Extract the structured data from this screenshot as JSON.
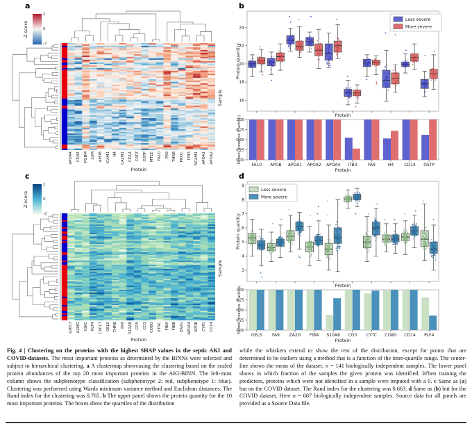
{
  "figure_labels": {
    "a": "a",
    "b": "b",
    "c": "c",
    "d": "d"
  },
  "colors": {
    "less_severe_aki": "#5E62CE",
    "more_severe_aki": "#DF6E6E",
    "less_pt_aki": "#3B40BC",
    "more_pt_aki": "#C94B4B",
    "less_severe_covid": "#C9E0C5",
    "more_severe_covid": "#4A91BB",
    "less_pt_covid": "#85B07F",
    "more_pt_covid": "#2E6F9E",
    "subphenotype_2_red": "#E8000B",
    "subphenotype_1_blue": "#0000CD",
    "box_edge": "#555555",
    "median": "#2A2A2A",
    "axis": "#999999",
    "dendro": "#7A7A7A"
  },
  "chart_data": {
    "panel_a": {
      "type": "heatmap",
      "title_letter": "a",
      "colorbar": {
        "title": "Z-score",
        "ticks": [
          "2",
          "0",
          "-2"
        ],
        "gradient": [
          "#B2182B",
          "#F7F4F2",
          "#2166AC"
        ]
      },
      "palette_low_to_high": [
        "#2166AC",
        "#4393C3",
        "#92C5DE",
        "#D1E5F0",
        "#F7F4F1",
        "#FDDBC7",
        "#F4A582",
        "#D6604D",
        "#B2182B"
      ],
      "columns": [
        "APOA4",
        "CD44",
        "PGBM",
        "LUM",
        "APOB",
        "ICAM1",
        "H4",
        "CALM1",
        "CD14",
        "CATZ",
        "OSTP",
        "MT1E",
        "FA10",
        "FA9",
        "THRB",
        "PROC",
        "ITB3",
        "NCAM1",
        "APOA1",
        "APOA2"
      ],
      "n_rows": 141,
      "display_rows": 77,
      "seed": 13,
      "bias_red": 0.5,
      "bias_blue": -0.55,
      "row_strip_segments": [
        [
          "r",
          0.02
        ],
        [
          "b",
          0.012
        ],
        [
          "r",
          0.1
        ],
        [
          "b",
          0.015
        ],
        [
          "r",
          0.03
        ],
        [
          "b",
          0.02
        ],
        [
          "r",
          0.02
        ],
        [
          "b",
          0.015
        ],
        [
          "r",
          0.27
        ],
        [
          "b",
          0.07
        ],
        [
          "r",
          0.03
        ],
        [
          "b",
          0.338
        ],
        [
          "r",
          0.04
        ],
        [
          "b",
          0.02
        ]
      ],
      "xlabel": "Protein",
      "right_label": "Sample"
    },
    "panel_c": {
      "type": "heatmap",
      "title_letter": "c",
      "colorbar": {
        "title": "Z-score",
        "ticks": [
          "2",
          "0",
          "-2"
        ],
        "gradient": [
          "#084081",
          "#4EB3D3",
          "#F7FCF0"
        ]
      },
      "palette_low_to_high": [
        "#F7FCF0",
        "#E0F3DB",
        "#CCEBC5",
        "#A8DDB5",
        "#7BCCC4",
        "#4EB3D3",
        "#2B8CBE",
        "#0868AC",
        "#084081"
      ],
      "columns": [
        "LV657",
        "A2MG",
        "IGKC",
        "PLF4",
        "CXCL7",
        "GELS",
        "THRB",
        "FA9",
        "S10A8",
        "CO9",
        "CO3",
        "CO8G",
        "VTNC",
        "FIBA",
        "FIBB",
        "ZA2G",
        "APOA4",
        "APOE",
        "CYTC",
        "CD14"
      ],
      "n_rows": 687,
      "display_rows": 77,
      "seed": 29,
      "bias_red": 0.38,
      "bias_blue": -0.34,
      "row_strip_segments": [
        [
          "b",
          0.06
        ],
        [
          "r",
          0.01
        ],
        [
          "b",
          0.05
        ],
        [
          "r",
          0.012
        ],
        [
          "b",
          0.03
        ],
        [
          "r",
          0.02
        ],
        [
          "b",
          0.01
        ],
        [
          "r",
          0.035
        ],
        [
          "b",
          0.01
        ],
        [
          "r",
          0.012
        ],
        [
          "b",
          0.085
        ],
        [
          "r",
          0.02
        ],
        [
          "b",
          0.05
        ],
        [
          "r",
          0.015
        ],
        [
          "b",
          0.02
        ],
        [
          "r",
          0.3
        ],
        [
          "b",
          0.01
        ],
        [
          "r",
          0.07
        ],
        [
          "b",
          0.015
        ],
        [
          "r",
          0.035
        ],
        [
          "b",
          0.03
        ],
        [
          "r",
          0.01
        ],
        [
          "b",
          0.015
        ],
        [
          "r",
          0.04
        ],
        [
          "b",
          0.036
        ]
      ],
      "xlabel": "Protein",
      "right_label": "Sample"
    },
    "panel_b": {
      "type": "box+bar",
      "title_letter": "b",
      "legend": [
        "Less severe",
        "More severe"
      ],
      "legend_pos": "right",
      "ylabel": "Protein quantity",
      "xlabel": "Protein",
      "ylim": [
        14.8,
        25.8
      ],
      "yticks": [
        16,
        18,
        20,
        22,
        24
      ],
      "proteins": [
        "FA10",
        "APOB",
        "APOA1",
        "APOA2",
        "APOA4",
        "ITB3",
        "FA9",
        "H4",
        "CD14",
        "OSTP"
      ],
      "box": {
        "less": [
          [
            18.6,
            19.6,
            20.0,
            20.3,
            21.0
          ],
          [
            18.8,
            19.8,
            20.2,
            20.6,
            21.3
          ],
          [
            21.4,
            22.2,
            22.6,
            23.1,
            23.9
          ],
          [
            21.3,
            22.0,
            22.45,
            22.9,
            23.5
          ],
          [
            19.6,
            20.4,
            21.1,
            22.2,
            23.4
          ],
          [
            15.5,
            16.4,
            16.8,
            17.2,
            18.2
          ],
          [
            18.6,
            19.7,
            20.1,
            20.5,
            21.0
          ],
          [
            15.9,
            17.4,
            18.2,
            19.3,
            21.5
          ],
          [
            19.0,
            19.7,
            19.95,
            20.2,
            21.1
          ],
          [
            16.4,
            17.3,
            17.8,
            18.3,
            19.2
          ]
        ],
        "more": [
          [
            19.1,
            20.0,
            20.35,
            20.7,
            21.6
          ],
          [
            19.3,
            20.3,
            20.8,
            21.2,
            22.2
          ],
          [
            20.7,
            21.5,
            21.9,
            22.5,
            24.1
          ],
          [
            19.5,
            20.9,
            21.5,
            22.2,
            23.8
          ],
          [
            20.6,
            21.3,
            22.0,
            22.5,
            24.3
          ],
          [
            15.7,
            16.5,
            16.8,
            17.1,
            17.7
          ],
          [
            18.8,
            19.9,
            20.15,
            20.4,
            20.9
          ],
          [
            16.9,
            17.8,
            18.4,
            19.0,
            19.9
          ],
          [
            19.4,
            20.3,
            20.7,
            21.1,
            22.2
          ],
          [
            17.2,
            18.4,
            18.9,
            19.4,
            21.0
          ]
        ]
      },
      "outliers": {
        "less": [
          [],
          [
            18.2
          ],
          [
            24.6,
            25.2
          ],
          [
            25.2
          ],
          [],
          [
            18.6
          ],
          [
            18.3
          ],
          [
            23.4
          ],
          [
            21.5
          ],
          [
            20.9
          ]
        ],
        "more": [
          [
            18.8,
            21.9
          ],
          [],
          [
            24.9
          ],
          [],
          [
            24.9
          ],
          [
            15.3
          ],
          [
            18.0,
            17.8
          ],
          [
            25.3,
            23.6,
            23.2
          ],
          [],
          [
            21.4
          ]
        ]
      },
      "n_points": 38,
      "point_seed": 5,
      "bars": {
        "ylabel": "Protein presence (fraction)",
        "ytick_labels": [
          "0.00",
          "0.25",
          "0.50",
          "0.75",
          "1.00"
        ],
        "less": [
          1,
          1,
          1,
          1,
          1,
          0.55,
          1,
          0.53,
          1,
          0.62
        ],
        "more": [
          1,
          1,
          1,
          1,
          1,
          0.28,
          1,
          0.72,
          1,
          1
        ]
      }
    },
    "panel_d": {
      "type": "box+bar",
      "title_letter": "d",
      "legend": [
        "Less severe",
        "More severe"
      ],
      "legend_pos": "left",
      "ylabel": "Protein quantity",
      "xlabel": "Protein",
      "ylim": [
        2.2,
        9.3
      ],
      "yticks": [
        3,
        4,
        5,
        6,
        7,
        8,
        9
      ],
      "proteins": [
        "GELS",
        "FA9",
        "ZA2G",
        "FIBA",
        "S10A8",
        "CO3",
        "CYTC",
        "CO8G",
        "CD14",
        "PLF4"
      ],
      "box": {
        "less": [
          [
            4.0,
            4.9,
            5.3,
            5.6,
            6.6
          ],
          [
            3.6,
            4.4,
            4.6,
            4.9,
            5.7
          ],
          [
            4.3,
            5.1,
            5.4,
            5.8,
            6.9
          ],
          [
            3.3,
            4.3,
            4.65,
            5.0,
            6.1
          ],
          [
            3.0,
            4.1,
            4.5,
            4.9,
            6.2
          ],
          [
            7.4,
            7.9,
            8.05,
            8.2,
            8.7
          ],
          [
            3.6,
            4.6,
            5.0,
            5.4,
            6.8
          ],
          [
            4.3,
            5.0,
            5.2,
            5.5,
            6.3
          ],
          [
            4.1,
            5.1,
            5.35,
            5.6,
            6.5
          ],
          [
            3.7,
            4.7,
            5.2,
            5.8,
            7.7
          ]
        ],
        "more": [
          [
            3.3,
            4.5,
            4.8,
            5.1,
            5.9
          ],
          [
            3.9,
            4.7,
            5.0,
            5.2,
            6.2
          ],
          [
            4.5,
            5.8,
            6.1,
            6.4,
            7.1
          ],
          [
            3.7,
            4.8,
            5.1,
            5.4,
            6.5
          ],
          [
            2.9,
            4.9,
            5.3,
            6.0,
            8.0
          ],
          [
            7.5,
            8.0,
            8.2,
            8.4,
            8.8
          ],
          [
            4.0,
            5.5,
            6.0,
            6.4,
            7.4
          ],
          [
            4.2,
            5.0,
            5.2,
            5.5,
            6.3
          ],
          [
            4.6,
            5.5,
            5.8,
            6.1,
            6.9
          ],
          [
            3.0,
            4.2,
            4.5,
            5.0,
            6.2
          ]
        ]
      },
      "outliers": {
        "less": [
          [],
          [
            6.3
          ],
          [
            7.3
          ],
          [
            6.9
          ],
          [
            7.9,
            6.9
          ],
          [],
          [
            7.0
          ],
          [
            6.6
          ],
          [
            7.0
          ],
          [
            7.9
          ]
        ],
        "more": [
          [
            2.5,
            2.8
          ],
          [
            6.6
          ],
          [
            4.0,
            3.9
          ],
          [
            7.0,
            7.5
          ],
          [],
          [
            7.0
          ],
          [
            7.7
          ],
          [
            6.6
          ],
          [
            7.2
          ],
          [
            6.6
          ]
        ]
      },
      "n_points": 90,
      "point_seed": 17,
      "bars": {
        "ylabel": "Protein presence (fraction)",
        "ytick_labels": [
          "0.00",
          "0.25",
          "0.50",
          "0.75",
          "1.00"
        ],
        "less": [
          1,
          0.99,
          1,
          1,
          0.38,
          1,
          0.91,
          1,
          1,
          0.81
        ],
        "more": [
          1,
          1,
          1,
          1,
          0.79,
          1,
          0.98,
          1,
          1,
          0.36
        ]
      }
    }
  },
  "caption": {
    "left": [
      {
        "t": "Fig. 4 | Clustering on the proteins with the highest SHAP values in the septic AKI and COVID-datasets.",
        "b": true
      },
      {
        "t": " The most important proteins as determined by the BINNs were selected and subject to hierarchical clustering. "
      },
      {
        "t": "a",
        "b": true
      },
      {
        "t": " A clustermap showcasing the clustering based on the scaled protein abundances of the top 20 most important proteins in the AKI-BINN. The left-most column shows the subphenotype classification (subphenotype 2: red, subphenotype 1: blue). Clustering was performed using Wards minimum variance method and Euclidean distances. The Rand index for the clustering was 0.765. "
      },
      {
        "t": "b",
        "b": true
      },
      {
        "t": " The upper panel shows the protein quantity for the 10 most important proteins. The boxes show the quartiles of the distribution"
      }
    ],
    "right": [
      {
        "t": "while the whiskers extend to show the rest of the distribution, except for points that are determined to be outliers using a method that is a function of the inter-quartile range. The center-line shows the mean of the dataset. "
      },
      {
        "t": "n",
        "i": true
      },
      {
        "t": " = 141 biologically independent samples. The lower panel shows in which fraction of the samples the given protein was identified. When training the predictors, proteins which were not identified in a sample were imputed with a 0. "
      },
      {
        "t": "c",
        "b": true
      },
      {
        "t": " Same as ("
      },
      {
        "t": "a",
        "b": true
      },
      {
        "t": ") but on the COVID dataset. The Rand index for the clustering was 0.663. "
      },
      {
        "t": "d",
        "b": true
      },
      {
        "t": " Same as ("
      },
      {
        "t": "b",
        "b": true
      },
      {
        "t": ") but for the COVID dataset. Here "
      },
      {
        "t": "n",
        "i": true
      },
      {
        "t": " = 687 biologically independent samples. Source data for all panels are provided as a Source Data file."
      }
    ]
  }
}
